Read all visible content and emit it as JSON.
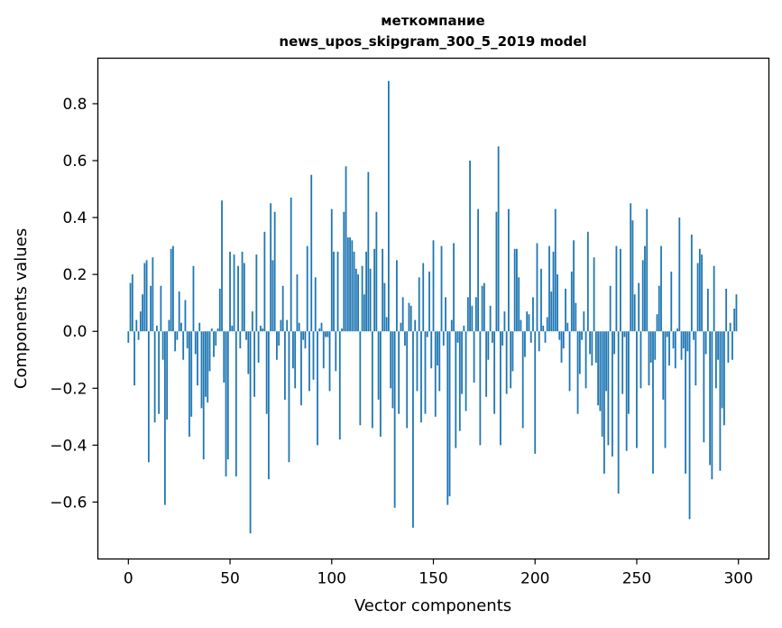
{
  "chart_data": {
    "type": "bar",
    "title_line1": "меткомпание",
    "title_line2": "news_upos_skipgram_300_5_2019 model",
    "xlabel": "Vector components",
    "ylabel": "Components values",
    "xlim": [
      -15,
      315
    ],
    "ylim": [
      -0.8,
      0.96
    ],
    "xticks": [
      0,
      50,
      100,
      150,
      200,
      250,
      300
    ],
    "xtick_labels": [
      "0",
      "50",
      "100",
      "150",
      "200",
      "250",
      "300"
    ],
    "yticks": [
      -0.6,
      -0.4,
      -0.2,
      0.0,
      0.2,
      0.4,
      0.6,
      0.8
    ],
    "ytick_labels": [
      "−0.6",
      "−0.4",
      "−0.2",
      "0.0",
      "0.2",
      "0.4",
      "0.6",
      "0.8"
    ],
    "bar_color": "#1f77b4",
    "values": [
      -0.04,
      0.17,
      0.2,
      -0.19,
      0.04,
      -0.03,
      0.07,
      0.13,
      0.24,
      0.25,
      -0.46,
      0.16,
      0.26,
      -0.32,
      0.02,
      -0.29,
      0.16,
      -0.1,
      -0.61,
      -0.31,
      0.04,
      0.29,
      0.3,
      -0.07,
      -0.03,
      0.14,
      0.03,
      -0.1,
      0.11,
      -0.06,
      -0.37,
      -0.3,
      0.23,
      -0.08,
      -0.19,
      0.03,
      -0.27,
      -0.45,
      -0.23,
      -0.25,
      -0.14,
      0.01,
      -0.09,
      -0.05,
      0.01,
      0.15,
      0.46,
      -0.18,
      -0.51,
      -0.45,
      0.28,
      0.02,
      0.27,
      -0.51,
      0.23,
      -0.06,
      0.28,
      0.24,
      -0.03,
      -0.15,
      -0.71,
      0.07,
      -0.23,
      0.27,
      -0.11,
      0.02,
      0.01,
      0.35,
      -0.29,
      -0.52,
      0.45,
      0.25,
      0.42,
      -0.1,
      -0.05,
      0.04,
      0.16,
      -0.24,
      0.04,
      -0.46,
      0.47,
      -0.13,
      -0.2,
      0.2,
      0.03,
      -0.26,
      -0.03,
      -0.06,
      0.3,
      -0.21,
      0.55,
      -0.17,
      0.19,
      -0.4,
      0.01,
      0.03,
      -0.13,
      -0.02,
      -0.02,
      -0.21,
      0.43,
      0.28,
      -0.14,
      0.28,
      -0.38,
      0.01,
      0.42,
      0.58,
      0.33,
      0.33,
      0.32,
      0.28,
      0.22,
      0.2,
      -0.33,
      0.23,
      0.13,
      0.28,
      0.56,
      0.22,
      -0.34,
      0.29,
      0.42,
      -0.24,
      -0.37,
      0.29,
      0.17,
      0.05,
      0.88,
      -0.2,
      -0.27,
      -0.62,
      0.25,
      -0.29,
      0.03,
      0.12,
      -0.05,
      -0.34,
      0.1,
      0.09,
      -0.69,
      0.04,
      -0.21,
      0.19,
      -0.32,
      0.24,
      -0.29,
      -0.02,
      0.21,
      -0.13,
      0.32,
      -0.3,
      -0.12,
      -0.21,
      0.3,
      -0.05,
      0.12,
      -0.61,
      -0.58,
      0.04,
      0.31,
      -0.41,
      -0.04,
      -0.35,
      -0.22,
      0.02,
      -0.28,
      0.12,
      0.6,
      0.09,
      -0.18,
      0.12,
      0.43,
      -0.4,
      0.16,
      0.17,
      -0.23,
      -0.1,
      0.09,
      -0.04,
      -0.29,
      0.42,
      0.65,
      -0.4,
      -0.05,
      0.07,
      -0.22,
      0.43,
      -0.2,
      -0.14,
      0.29,
      0.29,
      0.19,
      0.04,
      -0.34,
      -0.09,
      0.07,
      0.06,
      -0.04,
      0.12,
      -0.43,
      0.31,
      -0.07,
      0.22,
      0.02,
      -0.04,
      0.05,
      0.3,
      0.14,
      0.28,
      0.43,
      0.2,
      -0.03,
      -0.11,
      -0.06,
      0.15,
      0.03,
      -0.21,
      0.21,
      0.32,
      0.1,
      -0.29,
      -0.15,
      -0.03,
      0.07,
      -0.2,
      0.35,
      -0.08,
      -0.12,
      0.26,
      -0.11,
      -0.26,
      -0.28,
      -0.37,
      -0.5,
      -0.21,
      -0.4,
      0.16,
      -0.44,
      -0.08,
      0.3,
      -0.57,
      0.29,
      -0.22,
      -0.02,
      -0.42,
      -0.29,
      0.45,
      0.39,
      0.13,
      -0.41,
      0.17,
      -0.2,
      0.25,
      0.3,
      0.43,
      -0.19,
      -0.11,
      -0.5,
      -0.1,
      0.06,
      0.16,
      0.3,
      -0.24,
      -0.41,
      -0.02,
      -0.12,
      0.21,
      -0.06,
      -0.13,
      0.01,
      0.4,
      -0.1,
      -0.06,
      -0.5,
      -0.07,
      -0.66,
      0.34,
      -0.03,
      -0.19,
      0.24,
      0.29,
      0.27,
      -0.39,
      -0.08,
      0.15,
      -0.47,
      -0.52,
      0.23,
      -0.2,
      -0.1,
      -0.49,
      -0.27,
      -0.33,
      0.15,
      -0.11,
      0.03,
      -0.1,
      0.08,
      0.13
    ]
  }
}
